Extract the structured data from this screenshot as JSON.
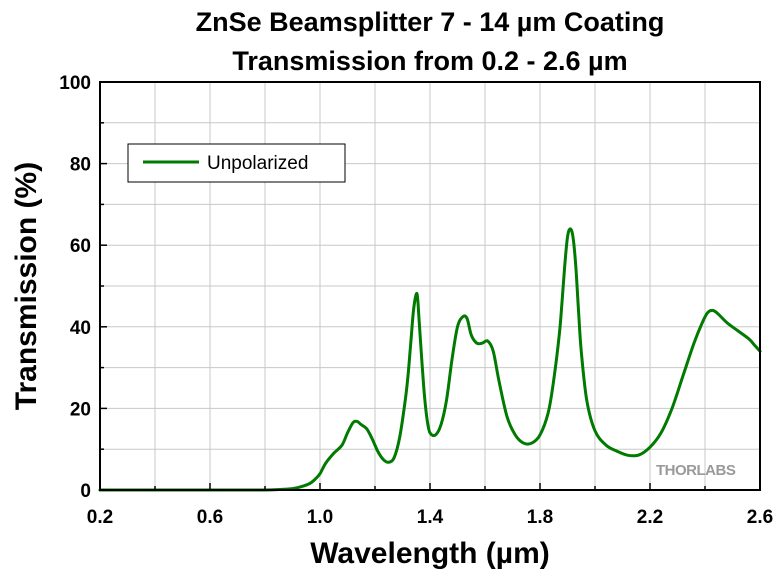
{
  "chart_data": {
    "type": "line",
    "title_lines": [
      "ZnSe Beamsplitter 7 - 14 µm Coating",
      "Transmission from 0.2 - 2.6 µm"
    ],
    "xlabel": "Wavelength (µm)",
    "ylabel": "Transmission (%)",
    "xlim": [
      0.2,
      2.6
    ],
    "ylim": [
      0,
      100
    ],
    "xticks": [
      0.2,
      0.6,
      1.0,
      1.4,
      1.8,
      2.2,
      2.6
    ],
    "xtick_labels": [
      "0.2",
      "0.6",
      "1.0",
      "1.4",
      "1.8",
      "2.2",
      "2.6"
    ],
    "yticks": [
      0,
      20,
      40,
      60,
      80,
      100
    ],
    "ytick_labels": [
      "0",
      "20",
      "40",
      "60",
      "80",
      "100"
    ],
    "grid": true,
    "legend_position": "top-left",
    "watermark": "THORLABS",
    "series": [
      {
        "name": "Unpolarized",
        "color": "#007a00",
        "x": [
          0.2,
          0.4,
          0.6,
          0.8,
          0.88,
          0.92,
          0.96,
          0.98,
          1.0,
          1.02,
          1.05,
          1.08,
          1.1,
          1.12,
          1.135,
          1.15,
          1.17,
          1.19,
          1.21,
          1.23,
          1.25,
          1.27,
          1.29,
          1.31,
          1.32,
          1.33,
          1.34,
          1.35,
          1.355,
          1.36,
          1.37,
          1.38,
          1.39,
          1.4,
          1.42,
          1.44,
          1.46,
          1.48,
          1.5,
          1.52,
          1.535,
          1.55,
          1.57,
          1.59,
          1.61,
          1.63,
          1.65,
          1.68,
          1.71,
          1.74,
          1.77,
          1.8,
          1.83,
          1.85,
          1.87,
          1.88,
          1.89,
          1.9,
          1.91,
          1.92,
          1.93,
          1.94,
          1.95,
          1.97,
          2.0,
          2.04,
          2.08,
          2.12,
          2.16,
          2.2,
          2.24,
          2.28,
          2.32,
          2.36,
          2.39,
          2.41,
          2.43,
          2.45,
          2.48,
          2.52,
          2.56,
          2.58,
          2.6
        ],
        "y": [
          0,
          0,
          0,
          0,
          0.2,
          0.6,
          1.5,
          2.5,
          4.0,
          6.5,
          9.0,
          11.0,
          14.0,
          16.5,
          16.8,
          16.0,
          15.0,
          12.5,
          9.5,
          7.5,
          6.8,
          8.0,
          13.0,
          22.0,
          28.0,
          36.0,
          44.0,
          48.0,
          47.0,
          42.0,
          32.0,
          23.0,
          17.0,
          14.0,
          13.5,
          16.0,
          22.0,
          32.0,
          40.0,
          42.5,
          42.0,
          38.0,
          36.0,
          36.0,
          36.5,
          34.0,
          27.0,
          18.0,
          13.5,
          11.5,
          11.5,
          13.5,
          19.0,
          27.0,
          38.0,
          46.0,
          55.0,
          62.0,
          64.0,
          62.0,
          55.0,
          44.0,
          34.0,
          22.0,
          14.5,
          11.0,
          9.5,
          8.5,
          8.6,
          10.5,
          14.0,
          20.0,
          28.0,
          36.0,
          41.0,
          43.5,
          44.0,
          43.0,
          41.0,
          39.0,
          37.0,
          35.5,
          34.0
        ]
      }
    ]
  }
}
